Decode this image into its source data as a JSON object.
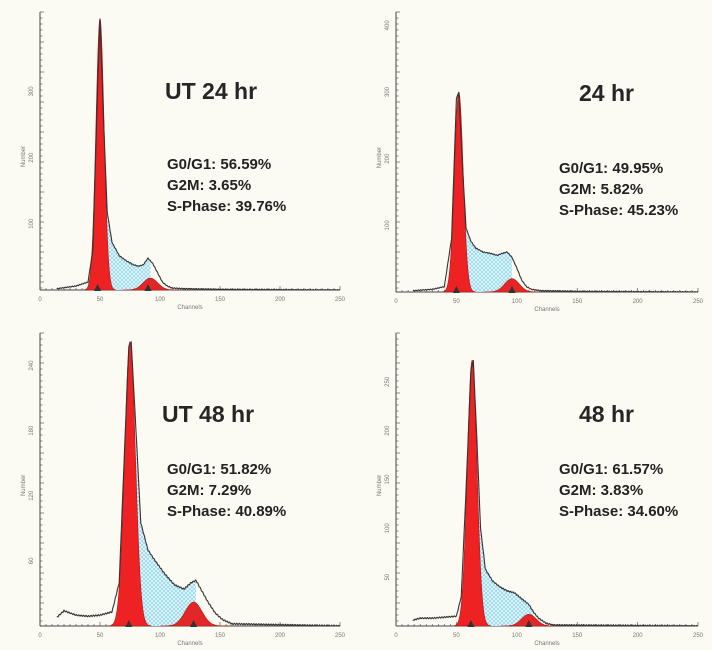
{
  "colors": {
    "g0g1": "#ee2222",
    "g2m": "#e32626",
    "sphase": "#8fd6ef",
    "outline": "#333333",
    "axis": "#444444",
    "marker": "#333333"
  },
  "chart_data": [
    {
      "type": "area",
      "title": "UT 24 hr",
      "xlabel": "Channels",
      "ylabel": "Number",
      "xlim": [
        0,
        250
      ],
      "ylim": [
        0,
        420
      ],
      "xticks": [
        "0",
        "50",
        "100",
        "150",
        "200",
        "250"
      ],
      "yticks": [
        "100",
        "200",
        "300"
      ],
      "stats": {
        "g0g1": "G0/G1: 56.59%",
        "g2m": "G2M: 3.65%",
        "sphase": "S-Phase: 39.76%"
      },
      "g1_peak": {
        "center": 50,
        "width": 3.4,
        "height": 410
      },
      "g2_peak": {
        "center": 92,
        "width": 6,
        "height": 18
      },
      "markers": [
        48,
        90
      ],
      "sphase_range": [
        54,
        92
      ],
      "baseline_range": [
        14,
        250
      ],
      "x": [
        14,
        30,
        40,
        44,
        48,
        50,
        53,
        56,
        60,
        66,
        72,
        78,
        82,
        86,
        90,
        94,
        98,
        102,
        106,
        110,
        120,
        150,
        250
      ],
      "y": [
        2,
        6,
        12,
        60,
        300,
        410,
        255,
        118,
        72,
        52,
        44,
        38,
        36,
        38,
        48,
        40,
        26,
        12,
        6,
        3,
        2,
        1,
        0
      ]
    },
    {
      "type": "area",
      "title": "24 hr",
      "xlabel": "Channels",
      "ylabel": "Number",
      "xlim": [
        0,
        250
      ],
      "ylim": [
        0,
        420
      ],
      "xticks": [
        "0",
        "50",
        "100",
        "150",
        "200",
        "250"
      ],
      "yticks": [
        "100",
        "200",
        "300",
        "400"
      ],
      "stats": {
        "g0g1": "G0/G1: 49.95%",
        "g2m": "G2M: 5.82%",
        "sphase": "S-Phase: 45.23%"
      },
      "g1_peak": {
        "center": 52,
        "width": 3.6,
        "height": 300
      },
      "g2_peak": {
        "center": 96,
        "width": 6,
        "height": 20
      },
      "markers": [
        50,
        96
      ],
      "sphase_range": [
        56,
        96
      ],
      "baseline_range": [
        14,
        250
      ],
      "x": [
        14,
        30,
        40,
        46,
        50,
        52,
        55,
        58,
        62,
        66,
        72,
        78,
        84,
        88,
        92,
        96,
        100,
        104,
        108,
        112,
        120,
        150,
        250
      ],
      "y": [
        2,
        4,
        8,
        80,
        290,
        300,
        190,
        96,
        76,
        66,
        60,
        58,
        55,
        58,
        60,
        52,
        36,
        18,
        8,
        4,
        2,
        1,
        0
      ]
    },
    {
      "type": "area",
      "title": "UT 48 hr",
      "xlabel": "Channels",
      "ylabel": "Number",
      "xlim": [
        0,
        250
      ],
      "ylim": [
        0,
        270
      ],
      "xticks": [
        "0",
        "50",
        "100",
        "150",
        "200",
        "250"
      ],
      "yticks": [
        "60",
        "120",
        "180",
        "240"
      ],
      "stats": {
        "g0g1": "G0/G1: 51.82%",
        "g2m": "G2M: 7.29%",
        "sphase": "S-Phase: 40.89%"
      },
      "g1_peak": {
        "center": 75,
        "width": 4.5,
        "height": 262
      },
      "g2_peak": {
        "center": 128,
        "width": 7,
        "height": 22
      },
      "markers": [
        74,
        128
      ],
      "sphase_range": [
        80,
        130
      ],
      "baseline_range": [
        14,
        250
      ],
      "x": [
        14,
        20,
        30,
        40,
        50,
        60,
        66,
        70,
        74,
        76,
        80,
        84,
        90,
        96,
        104,
        112,
        120,
        126,
        130,
        134,
        140,
        146,
        152,
        160,
        250
      ],
      "y": [
        8,
        14,
        10,
        9,
        10,
        13,
        40,
        150,
        258,
        262,
        180,
        95,
        70,
        60,
        48,
        38,
        34,
        40,
        42,
        34,
        22,
        12,
        6,
        2,
        0
      ]
    },
    {
      "type": "area",
      "title": "48 hr",
      "xlabel": "Channels",
      "ylabel": "Number",
      "xlim": [
        0,
        250
      ],
      "ylim": [
        0,
        300
      ],
      "xticks": [
        "0",
        "50",
        "100",
        "150",
        "200",
        "250"
      ],
      "yticks": [
        "50",
        "100",
        "150",
        "200",
        "250"
      ],
      "stats": {
        "g0g1": "G0/G1: 61.57%",
        "g2m": "G2M: 3.83%",
        "sphase": "S-Phase: 34.60%"
      },
      "g1_peak": {
        "center": 63,
        "width": 4,
        "height": 272
      },
      "g2_peak": {
        "center": 110,
        "width": 6,
        "height": 12
      },
      "markers": [
        62,
        110
      ],
      "sphase_range": [
        67,
        114
      ],
      "baseline_range": [
        14,
        250
      ],
      "x": [
        14,
        20,
        30,
        40,
        50,
        54,
        58,
        62,
        64,
        67,
        70,
        74,
        80,
        86,
        92,
        98,
        104,
        110,
        114,
        118,
        124,
        130,
        250
      ],
      "y": [
        6,
        8,
        8,
        9,
        10,
        30,
        140,
        262,
        272,
        190,
        100,
        58,
        46,
        40,
        36,
        34,
        28,
        22,
        14,
        8,
        3,
        1,
        0
      ]
    }
  ]
}
